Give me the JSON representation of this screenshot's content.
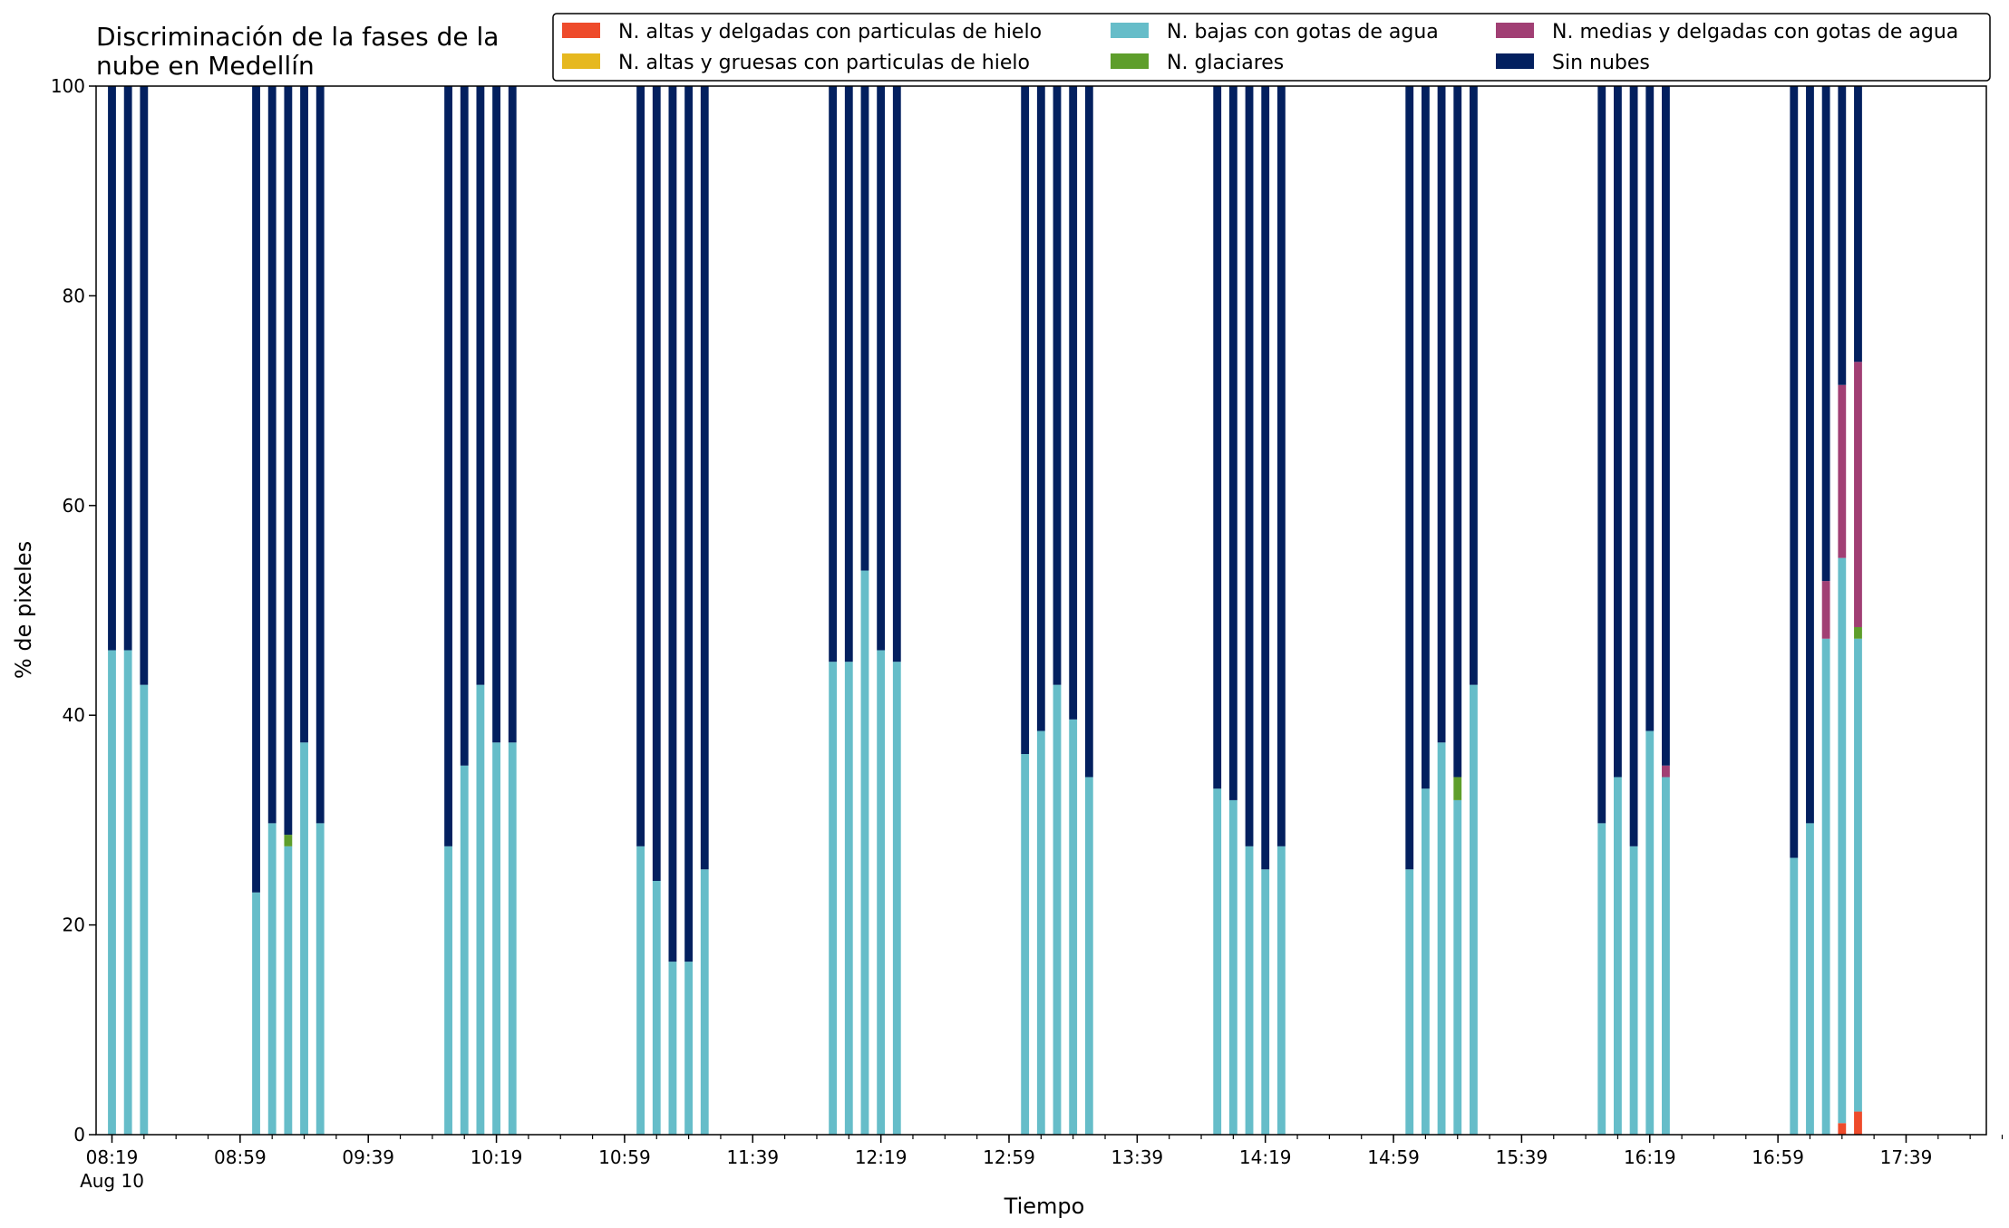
{
  "chart_data": {
    "type": "bar",
    "stacked": true,
    "title_lines": [
      "Discriminación de la fases de la",
      "nube en Medellín"
    ],
    "xlabel": "Tiempo",
    "ylabel": "% de pixeles",
    "ylim": [
      0,
      100
    ],
    "yticks": [
      0,
      20,
      40,
      60,
      80,
      100
    ],
    "grid": false,
    "legend_position": "top-right",
    "x_start": "08:19",
    "x_end": "18:09",
    "x_step_minutes": 10,
    "xticks_major": [
      "08:19",
      "08:59",
      "09:39",
      "10:19",
      "10:59",
      "11:39",
      "12:19",
      "12:59",
      "13:39",
      "14:19",
      "14:59",
      "15:39",
      "16:19",
      "16:59",
      "17:39"
    ],
    "xtick_date_label": "Aug 10",
    "series": [
      {
        "name": "N. altas y delgadas con particulas de hielo",
        "color": "#ee4b2b"
      },
      {
        "name": "N. altas y gruesas con particulas de hielo",
        "color": "#e6b81f"
      },
      {
        "name": "N. bajas con gotas de agua",
        "color": "#66bdc9"
      },
      {
        "name": "N. glaciares",
        "color": "#5e9e2b"
      },
      {
        "name": "N. medias y delgadas con gotas de agua",
        "color": "#a13f74"
      },
      {
        "name": "Sin nubes",
        "color": "#03205f"
      }
    ],
    "data": [
      {
        "x": "08:19",
        "values": [
          0,
          0,
          46.2,
          0,
          0,
          53.8
        ]
      },
      {
        "x": "08:24",
        "values": [
          0,
          0,
          46.2,
          0,
          0,
          53.8
        ]
      },
      {
        "x": "08:29",
        "values": [
          0,
          0,
          42.9,
          0,
          0,
          57.1
        ]
      },
      {
        "x": "09:04",
        "values": [
          0,
          0,
          23.1,
          0,
          0,
          76.9
        ]
      },
      {
        "x": "09:09",
        "values": [
          0,
          0,
          29.7,
          0,
          0,
          70.3
        ]
      },
      {
        "x": "09:14",
        "values": [
          0,
          0,
          27.5,
          1.1,
          0,
          71.4
        ]
      },
      {
        "x": "09:19",
        "values": [
          0,
          0,
          37.4,
          0,
          0,
          62.6
        ]
      },
      {
        "x": "09:24",
        "values": [
          0,
          0,
          29.7,
          0,
          0,
          70.3
        ]
      },
      {
        "x": "10:04",
        "values": [
          0,
          0,
          27.5,
          0,
          0,
          72.5
        ]
      },
      {
        "x": "10:09",
        "values": [
          0,
          0,
          35.2,
          0,
          0,
          64.8
        ]
      },
      {
        "x": "10:14",
        "values": [
          0,
          0,
          42.9,
          0,
          0,
          57.1
        ]
      },
      {
        "x": "10:19",
        "values": [
          0,
          0,
          37.4,
          0,
          0,
          62.6
        ]
      },
      {
        "x": "10:24",
        "values": [
          0,
          0,
          37.4,
          0,
          0,
          62.6
        ]
      },
      {
        "x": "11:04",
        "values": [
          0,
          0,
          27.5,
          0,
          0,
          72.5
        ]
      },
      {
        "x": "11:09",
        "values": [
          0,
          0,
          24.2,
          0,
          0,
          75.8
        ]
      },
      {
        "x": "11:14",
        "values": [
          0,
          0,
          16.5,
          0,
          0,
          83.5
        ]
      },
      {
        "x": "11:19",
        "values": [
          0,
          0,
          16.5,
          0,
          0,
          83.5
        ]
      },
      {
        "x": "11:24",
        "values": [
          0,
          0,
          25.3,
          0,
          0,
          74.7
        ]
      },
      {
        "x": "12:04",
        "values": [
          0,
          0,
          45.1,
          0,
          0,
          54.9
        ]
      },
      {
        "x": "12:09",
        "values": [
          0,
          0,
          45.1,
          0,
          0,
          54.9
        ]
      },
      {
        "x": "12:14",
        "values": [
          0,
          0,
          53.8,
          0,
          0,
          46.2
        ]
      },
      {
        "x": "12:19",
        "values": [
          0,
          0,
          46.2,
          0,
          0,
          53.8
        ]
      },
      {
        "x": "12:24",
        "values": [
          0,
          0,
          45.1,
          0,
          0,
          54.9
        ]
      },
      {
        "x": "13:04",
        "values": [
          0,
          0,
          36.3,
          0,
          0,
          63.7
        ]
      },
      {
        "x": "13:09",
        "values": [
          0,
          0,
          38.5,
          0,
          0,
          61.5
        ]
      },
      {
        "x": "13:14",
        "values": [
          0,
          0,
          42.9,
          0,
          0,
          57.1
        ]
      },
      {
        "x": "13:19",
        "values": [
          0,
          0,
          39.6,
          0,
          0,
          60.4
        ]
      },
      {
        "x": "13:24",
        "values": [
          0,
          0,
          34.1,
          0,
          0,
          65.9
        ]
      },
      {
        "x": "14:04",
        "values": [
          0,
          0,
          33.0,
          0,
          0,
          67.0
        ]
      },
      {
        "x": "14:09",
        "values": [
          0,
          0,
          31.9,
          0,
          0,
          68.1
        ]
      },
      {
        "x": "14:14",
        "values": [
          0,
          0,
          27.5,
          0,
          0,
          72.5
        ]
      },
      {
        "x": "14:19",
        "values": [
          0,
          0,
          25.3,
          0,
          0,
          74.7
        ]
      },
      {
        "x": "14:24",
        "values": [
          0,
          0,
          27.5,
          0,
          0,
          72.5
        ]
      },
      {
        "x": "15:04",
        "values": [
          0,
          0,
          25.3,
          0,
          0,
          74.7
        ]
      },
      {
        "x": "15:09",
        "values": [
          0,
          0,
          33.0,
          0,
          0,
          67.0
        ]
      },
      {
        "x": "15:14",
        "values": [
          0,
          0,
          37.4,
          0,
          0,
          62.6
        ]
      },
      {
        "x": "15:19",
        "values": [
          0,
          0,
          31.9,
          2.2,
          0,
          65.9
        ]
      },
      {
        "x": "15:24",
        "values": [
          0,
          0,
          42.9,
          0,
          0,
          57.1
        ]
      },
      {
        "x": "16:04",
        "values": [
          0,
          0,
          29.7,
          0,
          0,
          70.3
        ]
      },
      {
        "x": "16:09",
        "values": [
          0,
          0,
          34.1,
          0,
          0,
          65.9
        ]
      },
      {
        "x": "16:14",
        "values": [
          0,
          0,
          27.5,
          0,
          0,
          72.5
        ]
      },
      {
        "x": "16:19",
        "values": [
          0,
          0,
          38.5,
          0,
          0,
          61.5
        ]
      },
      {
        "x": "16:24",
        "values": [
          0,
          0,
          34.1,
          0,
          1.1,
          64.8
        ]
      },
      {
        "x": "17:04",
        "values": [
          0,
          0,
          26.4,
          0,
          0,
          73.6
        ]
      },
      {
        "x": "17:09",
        "values": [
          0,
          0,
          29.7,
          0,
          0,
          70.3
        ]
      },
      {
        "x": "17:14",
        "values": [
          0,
          0,
          47.3,
          0,
          5.5,
          47.2
        ]
      },
      {
        "x": "17:19",
        "values": [
          1.1,
          0,
          53.9,
          0,
          16.5,
          28.5
        ]
      },
      {
        "x": "17:24",
        "values": [
          2.2,
          0,
          45.1,
          1.1,
          25.3,
          26.3
        ]
      }
    ]
  }
}
